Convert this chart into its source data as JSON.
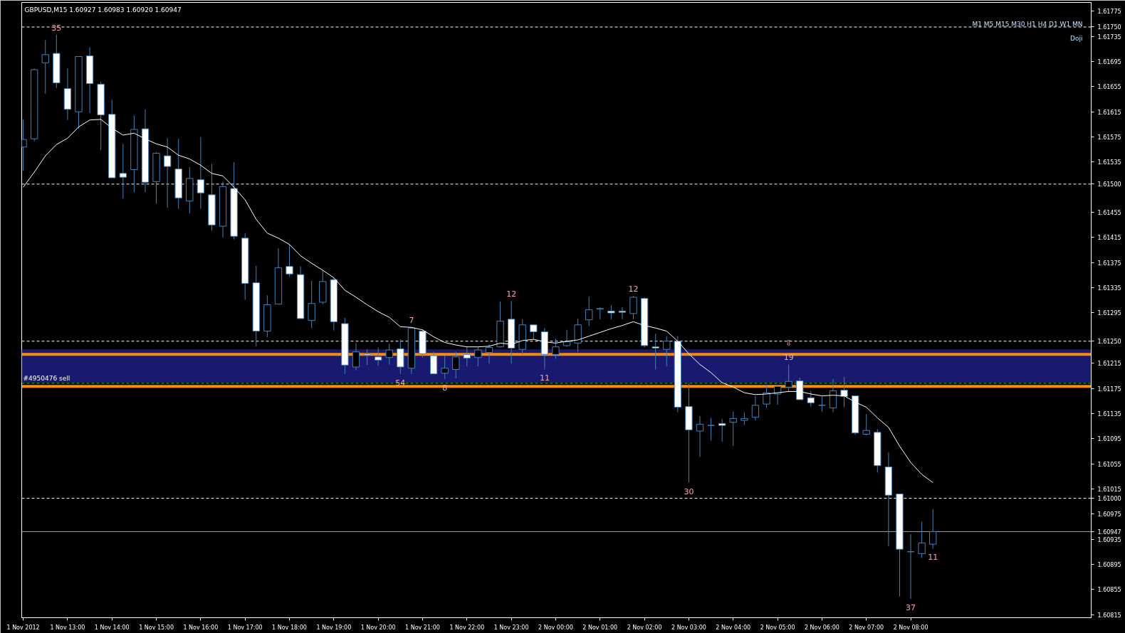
{
  "chart_data": {
    "type": "candlestick",
    "title": "GBPUSD,M15  1.60927 1.60983 1.60920 1.60947",
    "color": "#4682b4",
    "x": [
      "2012-11-01T12:00",
      "2012-11-01T12:15",
      "2012-11-01T12:30",
      "2012-11-01T12:45",
      "2012-11-01T13:00",
      "2012-11-01T13:15",
      "2012-11-01T13:30",
      "2012-11-01T13:45",
      "2012-11-01T14:00",
      "2012-11-01T14:15",
      "2012-11-01T14:30",
      "2012-11-01T14:45",
      "2012-11-01T15:00",
      "2012-11-01T15:15",
      "2012-11-01T15:30",
      "2012-11-01T15:45",
      "2012-11-01T16:00",
      "2012-11-01T16:15",
      "2012-11-01T16:30",
      "2012-11-01T16:45",
      "2012-11-01T17:00",
      "2012-11-01T17:15",
      "2012-11-01T17:30",
      "2012-11-01T17:45",
      "2012-11-01T18:00",
      "2012-11-01T18:15",
      "2012-11-01T18:30",
      "2012-11-01T18:45",
      "2012-11-01T19:00",
      "2012-11-01T19:15",
      "2012-11-01T19:30",
      "2012-11-01T19:45",
      "2012-11-01T20:00",
      "2012-11-01T20:15",
      "2012-11-01T20:30",
      "2012-11-01T20:45",
      "2012-11-01T21:00",
      "2012-11-01T21:15",
      "2012-11-01T21:30",
      "2012-11-01T21:45",
      "2012-11-01T22:00",
      "2012-11-01T22:15",
      "2012-11-01T22:30",
      "2012-11-01T22:45",
      "2012-11-01T23:00",
      "2012-11-01T23:15",
      "2012-11-01T23:30",
      "2012-11-01T23:45",
      "2012-11-02T00:00",
      "2012-11-02T00:15",
      "2012-11-02T00:30",
      "2012-11-02T00:45",
      "2012-11-02T01:00",
      "2012-11-02T01:15",
      "2012-11-02T01:30",
      "2012-11-02T01:45",
      "2012-11-02T02:00",
      "2012-11-02T02:15",
      "2012-11-02T02:30",
      "2012-11-02T02:45",
      "2012-11-02T03:00",
      "2012-11-02T03:15",
      "2012-11-02T03:30",
      "2012-11-02T03:45",
      "2012-11-02T04:00",
      "2012-11-02T04:15",
      "2012-11-02T04:30",
      "2012-11-02T04:45",
      "2012-11-02T05:00",
      "2012-11-02T05:15",
      "2012-11-02T05:30",
      "2012-11-02T05:45",
      "2012-11-02T06:00",
      "2012-11-02T06:15",
      "2012-11-02T06:30",
      "2012-11-02T06:45",
      "2012-11-02T07:00",
      "2012-11-02T07:15",
      "2012-11-02T07:30",
      "2012-11-02T07:45",
      "2012-11-02T08:00",
      "2012-11-02T08:15",
      "2012-11-02T08:30"
    ],
    "ohlc": [
      [
        1.61559,
        1.61603,
        1.61521,
        1.61571
      ],
      [
        1.61572,
        1.61684,
        1.61568,
        1.61682
      ],
      [
        1.61693,
        1.61729,
        1.61644,
        1.61706
      ],
      [
        1.61708,
        1.61738,
        1.61653,
        1.61661
      ],
      [
        1.61652,
        1.61684,
        1.61602,
        1.61619
      ],
      [
        1.61615,
        1.61703,
        1.61588,
        1.61703
      ],
      [
        1.61704,
        1.61718,
        1.61613,
        1.6166
      ],
      [
        1.61659,
        1.61663,
        1.61554,
        1.6161
      ],
      [
        1.61611,
        1.61634,
        1.6151,
        1.6151
      ],
      [
        1.61517,
        1.61564,
        1.61477,
        1.61511
      ],
      [
        1.61523,
        1.61609,
        1.61487,
        1.61587
      ],
      [
        1.61588,
        1.61619,
        1.61487,
        1.61503
      ],
      [
        1.61504,
        1.61551,
        1.61469,
        1.61549
      ],
      [
        1.61545,
        1.61573,
        1.61462,
        1.61528
      ],
      [
        1.61524,
        1.61572,
        1.61461,
        1.61478
      ],
      [
        1.61473,
        1.61527,
        1.61453,
        1.61509
      ],
      [
        1.61507,
        1.61575,
        1.61461,
        1.61486
      ],
      [
        1.61483,
        1.61532,
        1.61426,
        1.61435
      ],
      [
        1.61433,
        1.61504,
        1.61415,
        1.61496
      ],
      [
        1.61493,
        1.61535,
        1.61412,
        1.61417
      ],
      [
        1.61414,
        1.61422,
        1.61316,
        1.61342
      ],
      [
        1.61343,
        1.6137,
        1.61242,
        1.61266
      ],
      [
        1.61266,
        1.61323,
        1.61256,
        1.61308
      ],
      [
        1.61309,
        1.61398,
        1.61309,
        1.61367
      ],
      [
        1.61369,
        1.61404,
        1.61353,
        1.61357
      ],
      [
        1.61356,
        1.61369,
        1.61286,
        1.61286
      ],
      [
        1.61283,
        1.61346,
        1.61271,
        1.6131
      ],
      [
        1.61312,
        1.61363,
        1.61309,
        1.61345
      ],
      [
        1.61348,
        1.61351,
        1.61267,
        1.61281
      ],
      [
        1.61278,
        1.61287,
        1.61198,
        1.61212
      ],
      [
        1.61209,
        1.61247,
        1.61204,
        1.61233
      ],
      [
        1.6123,
        1.61237,
        1.61212,
        1.61228
      ],
      [
        1.61225,
        1.6124,
        1.61211,
        1.6122
      ],
      [
        1.61224,
        1.61246,
        1.61213,
        1.61236
      ],
      [
        1.61238,
        1.61253,
        1.61198,
        1.61209
      ],
      [
        1.61207,
        1.61272,
        1.61198,
        1.61271
      ],
      [
        1.61266,
        1.61269,
        1.61224,
        1.6123
      ],
      [
        1.61227,
        1.61233,
        1.61198,
        1.61198
      ],
      [
        1.61199,
        1.61227,
        1.6119,
        1.61207
      ],
      [
        1.61205,
        1.61233,
        1.61191,
        1.61225
      ],
      [
        1.61229,
        1.61241,
        1.6121,
        1.61223
      ],
      [
        1.61224,
        1.61241,
        1.6121,
        1.61236
      ],
      [
        1.61232,
        1.61245,
        1.61214,
        1.6124
      ],
      [
        1.61241,
        1.61313,
        1.6124,
        1.61282
      ],
      [
        1.61285,
        1.61314,
        1.61214,
        1.61239
      ],
      [
        1.61237,
        1.61285,
        1.61229,
        1.61276
      ],
      [
        1.61276,
        1.61276,
        1.61253,
        1.61265
      ],
      [
        1.61265,
        1.61271,
        1.61205,
        1.61229
      ],
      [
        1.61229,
        1.61254,
        1.61222,
        1.61241
      ],
      [
        1.61243,
        1.61268,
        1.61241,
        1.61249
      ],
      [
        1.61247,
        1.61286,
        1.61233,
        1.61276
      ],
      [
        1.61284,
        1.61321,
        1.61274,
        1.613
      ],
      [
        1.61301,
        1.61304,
        1.61285,
        1.61302
      ],
      [
        1.61298,
        1.61307,
        1.61285,
        1.61295
      ],
      [
        1.61298,
        1.61304,
        1.61285,
        1.61296
      ],
      [
        1.61294,
        1.61322,
        1.61285,
        1.6132
      ],
      [
        1.61318,
        1.6132,
        1.6124,
        1.61243
      ],
      [
        1.61241,
        1.61262,
        1.61205,
        1.61239
      ],
      [
        1.61237,
        1.61258,
        1.6121,
        1.6125
      ],
      [
        1.6125,
        1.61258,
        1.61137,
        1.61145
      ],
      [
        1.61146,
        1.61183,
        1.61025,
        1.61109
      ],
      [
        1.61107,
        1.61131,
        1.61066,
        1.61118
      ],
      [
        1.61116,
        1.61128,
        1.61092,
        1.61116
      ],
      [
        1.61119,
        1.61126,
        1.6109,
        1.61116
      ],
      [
        1.61121,
        1.61138,
        1.61083,
        1.61127
      ],
      [
        1.61124,
        1.61137,
        1.61117,
        1.61127
      ],
      [
        1.61129,
        1.61163,
        1.61124,
        1.61148
      ],
      [
        1.6115,
        1.61181,
        1.61144,
        1.61168
      ],
      [
        1.61166,
        1.61181,
        1.61149,
        1.61178
      ],
      [
        1.61177,
        1.61213,
        1.61169,
        1.61186
      ],
      [
        1.61187,
        1.61192,
        1.61157,
        1.61157
      ],
      [
        1.6116,
        1.61171,
        1.61146,
        1.61152
      ],
      [
        1.61148,
        1.61162,
        1.61138,
        1.61148
      ],
      [
        1.61144,
        1.6119,
        1.61137,
        1.61171
      ],
      [
        1.61172,
        1.61193,
        1.61145,
        1.61162
      ],
      [
        1.61163,
        1.61163,
        1.61101,
        1.61104
      ],
      [
        1.61102,
        1.61134,
        1.611,
        1.61108
      ],
      [
        1.61105,
        1.6111,
        1.61041,
        1.61052
      ],
      [
        1.6105,
        1.61073,
        1.60924,
        1.61005
      ],
      [
        1.61007,
        1.61007,
        1.60844,
        1.60919
      ],
      [
        1.60915,
        1.60943,
        1.6084,
        1.60915
      ],
      [
        1.60912,
        1.60963,
        1.60905,
        1.60929
      ],
      [
        1.60927,
        1.60983,
        1.6092,
        1.60947
      ]
    ],
    "series": [
      {
        "type": "line",
        "color": "#ffffff",
        "values": [
          1.61495,
          1.61519,
          1.61545,
          1.61563,
          1.61573,
          1.61591,
          1.61602,
          1.61603,
          1.61589,
          1.61578,
          1.61581,
          1.61572,
          1.61564,
          1.61559,
          1.61546,
          1.6154,
          1.6153,
          1.61517,
          1.61513,
          1.61495,
          1.61475,
          1.61444,
          1.61422,
          1.61414,
          1.61404,
          1.61386,
          1.61374,
          1.61363,
          1.61351,
          1.61331,
          1.6132,
          1.61308,
          1.61297,
          1.61288,
          1.61273,
          1.61272,
          1.61268,
          1.61257,
          1.61248,
          1.61244,
          1.61241,
          1.61241,
          1.61242,
          1.61247,
          1.61245,
          1.61251,
          1.61253,
          1.61249,
          1.61247,
          1.6125,
          1.61252,
          1.61258,
          1.61264,
          1.6127,
          1.61275,
          1.61281,
          1.61275,
          1.61271,
          1.61266,
          1.6125,
          1.6123,
          1.61213,
          1.612,
          1.61184,
          1.61177,
          1.61168,
          1.61165,
          1.61166,
          1.61168,
          1.6117,
          1.6117,
          1.61166,
          1.61163,
          1.61164,
          1.61163,
          1.61153,
          1.61145,
          1.61128,
          1.61113,
          1.61083,
          1.61057,
          1.61038,
          1.61025
        ]
      }
    ],
    "xlim": [
      "2012-11-01T11:58",
      "2012-11-02T12:04"
    ],
    "xticks": [
      {
        "value": "2012-11-01T12:00",
        "label": "1 Nov 2012"
      },
      {
        "value": "2012-11-01T13:00",
        "label": "1 Nov 13:00"
      },
      {
        "value": "2012-11-01T14:00",
        "label": "1 Nov 14:00"
      },
      {
        "value": "2012-11-01T15:00",
        "label": "1 Nov 15:00"
      },
      {
        "value": "2012-11-01T16:00",
        "label": "1 Nov 16:00"
      },
      {
        "value": "2012-11-01T17:00",
        "label": "1 Nov 17:00"
      },
      {
        "value": "2012-11-01T18:00",
        "label": "1 Nov 18:00"
      },
      {
        "value": "2012-11-01T19:00",
        "label": "1 Nov 19:00"
      },
      {
        "value": "2012-11-01T20:00",
        "label": "1 Nov 20:00"
      },
      {
        "value": "2012-11-01T21:00",
        "label": "1 Nov 21:00"
      },
      {
        "value": "2012-11-01T22:00",
        "label": "1 Nov 22:00"
      },
      {
        "value": "2012-11-01T23:00",
        "label": "1 Nov 23:00"
      },
      {
        "value": "2012-11-02T00:00",
        "label": "2 Nov 00:00"
      },
      {
        "value": "2012-11-02T01:00",
        "label": "2 Nov 01:00"
      },
      {
        "value": "2012-11-02T02:00",
        "label": "2 Nov 02:00"
      },
      {
        "value": "2012-11-02T03:00",
        "label": "2 Nov 03:00"
      },
      {
        "value": "2012-11-02T04:00",
        "label": "2 Nov 04:00"
      },
      {
        "value": "2012-11-02T05:00",
        "label": "2 Nov 05:00"
      },
      {
        "value": "2012-11-02T06:00",
        "label": "2 Nov 06:00"
      },
      {
        "value": "2012-11-02T07:00",
        "label": "2 Nov 07:00"
      },
      {
        "value": "2012-11-02T08:00",
        "label": "2 Nov 08:00"
      }
    ],
    "ylim": [
      1.6081,
      1.61789
    ],
    "yticks": [
      1.61775,
      1.61735,
      1.61695,
      1.61655,
      1.61615,
      1.61575,
      1.61535,
      1.61455,
      1.61415,
      1.61375,
      1.61335,
      1.61295,
      1.61215,
      1.61175,
      1.61135,
      1.61095,
      1.61055,
      1.61015,
      1.60975,
      1.60935,
      1.60895,
      1.60855,
      1.60815
    ],
    "bands": [
      {
        "axis": "y",
        "from": 1.61184,
        "to": 1.61237,
        "color": "#191970"
      }
    ],
    "ref_lines": [
      {
        "axis": "y",
        "value": 1.6175,
        "label": "1.61750",
        "color": "#ffffff",
        "line_style": "dashed"
      },
      {
        "axis": "y",
        "value": 1.615,
        "label": "1.61500",
        "color": "#ffffff",
        "line_style": "dashed"
      },
      {
        "axis": "y",
        "value": 1.6125,
        "label": "1.61250",
        "color": "#ffffff",
        "line_style": "dashed"
      },
      {
        "axis": "y",
        "value": 1.61,
        "label": "1.61000",
        "color": "#ffffff",
        "line_style": "dashed"
      },
      {
        "axis": "y",
        "value": 1.60947,
        "label": "1.60947",
        "color": "#a0a0a0",
        "line_style": "solid"
      },
      {
        "axis": "y",
        "value": 1.61183,
        "color": "#32cd32",
        "line_style": "dashed"
      },
      {
        "axis": "y",
        "value": 1.61229,
        "color": "#ff8c00",
        "line_style": "solid"
      },
      {
        "axis": "y",
        "value": 1.61178,
        "color": "#ff8c00",
        "line_style": "solid"
      }
    ],
    "annotations": [
      {
        "text": "35",
        "x": "2012-11-01T12:45",
        "y": 1.61738
      },
      {
        "text": "7",
        "x": "2012-11-01T20:45",
        "y": 1.61272
      },
      {
        "text": "54",
        "x": "2012-11-01T20:30",
        "y": 1.61198
      },
      {
        "text": "8",
        "x": "2012-11-01T21:30",
        "y": 1.6119
      },
      {
        "text": "12",
        "x": "2012-11-01T23:00",
        "y": 1.61314
      },
      {
        "text": "11",
        "x": "2012-11-01T23:45",
        "y": 1.61205
      },
      {
        "text": "12",
        "x": "2012-11-02T01:45",
        "y": 1.61322
      },
      {
        "text": "30",
        "x": "2012-11-02T03:00",
        "y": 1.61025
      },
      {
        "text": "19",
        "x": "2012-11-02T05:15",
        "y": 1.61213
      },
      {
        "text": "⇩",
        "x": "2012-11-02T05:15",
        "y": 1.61213
      },
      {
        "text": "37",
        "x": "2012-11-02T08:00",
        "y": 1.6084
      },
      {
        "text": "11",
        "x": "2012-11-02T08:30",
        "y": 1.6092
      },
      {
        "text": "#4950476 sell",
        "x": "2012-11-01T12:00",
        "y": 1.61183
      },
      "M1 M5 M15 M30 H1 H4 D1 W1 MN",
      "Doji"
    ]
  }
}
